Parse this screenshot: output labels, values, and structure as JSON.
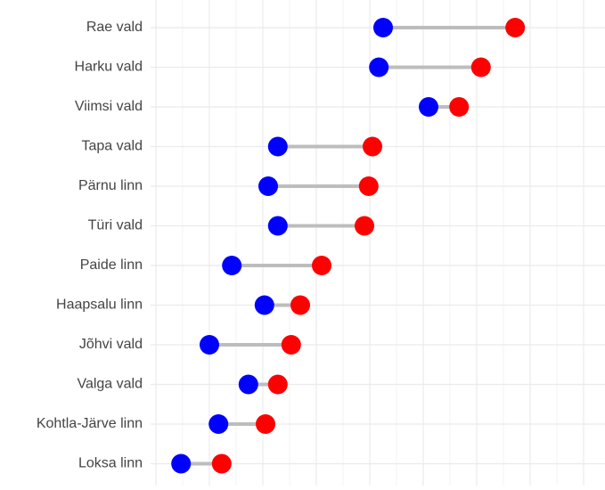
{
  "chart_data": {
    "type": "dumbbell",
    "categories": [
      "Rae vald",
      "Harku vald",
      "Viimsi vald",
      "Tapa vald",
      "Pärnu linn",
      "Türi vald",
      "Paide linn",
      "Haapsalu linn",
      "Jõhvi vald",
      "Valga vald",
      "Kohtla-Järve linn",
      "Loksa linn"
    ],
    "series": [
      {
        "color": "#0000ff",
        "values": [
          4.25,
          4.17,
          5.1,
          2.28,
          2.1,
          2.28,
          1.42,
          2.03,
          1.0,
          1.73,
          1.17,
          0.47
        ]
      },
      {
        "color": "#ff0000",
        "values": [
          6.72,
          6.08,
          5.67,
          4.05,
          3.98,
          3.9,
          3.1,
          2.7,
          2.53,
          2.28,
          2.05,
          1.23
        ]
      }
    ],
    "xlim": [
      -0.1,
      8.4
    ],
    "xticks": [
      0,
      1,
      2,
      3,
      4,
      5,
      6,
      7,
      8
    ],
    "grid": true,
    "segment_color": "#bdbdbd"
  }
}
